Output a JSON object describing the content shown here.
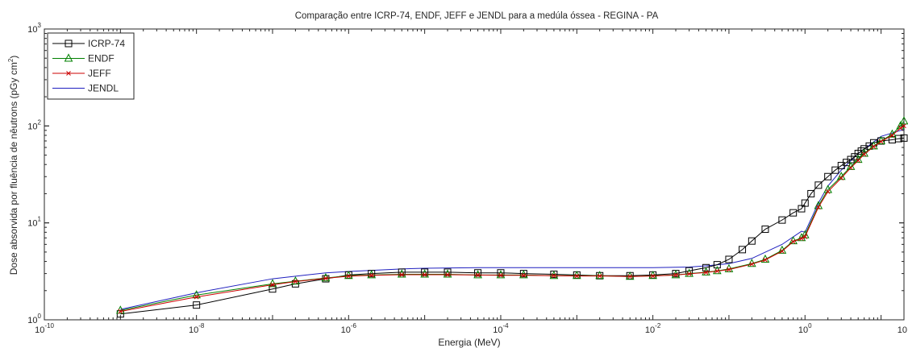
{
  "chart_data": {
    "type": "line",
    "title": "Comparação entre ICRP-74, ENDF, JEFF e JENDL para a medúla óssea - REGINA - PA",
    "xlabel": "Energia (MeV)",
    "ylabel_main": "Dose absorvida por fluência de nêutrons (pGy cm",
    "ylabel_exp": "2",
    "ylabel_close": ")",
    "x_scale": "log",
    "y_scale": "log",
    "xlim": [
      1e-10,
      20
    ],
    "ylim": [
      1,
      1000
    ],
    "grid": false,
    "legend_position": "top-left",
    "x_ticks": [
      {
        "base": "10",
        "exp": "-10",
        "value": 1e-10
      },
      {
        "base": "10",
        "exp": "-8",
        "value": 1e-08
      },
      {
        "base": "10",
        "exp": "-6",
        "value": 1e-06
      },
      {
        "base": "10",
        "exp": "-4",
        "value": 0.0001
      },
      {
        "base": "10",
        "exp": "-2",
        "value": 0.01
      },
      {
        "base": "10",
        "exp": "0",
        "value": 1
      },
      {
        "base": "10",
        "exp": "",
        "value": 20
      }
    ],
    "y_ticks": [
      {
        "base": "10",
        "exp": "0",
        "value": 1
      },
      {
        "base": "10",
        "exp": "1",
        "value": 10
      },
      {
        "base": "10",
        "exp": "2",
        "value": 100
      },
      {
        "base": "10",
        "exp": "3",
        "value": 1000
      }
    ],
    "series": [
      {
        "name": "ICRP-74",
        "color": "#000000",
        "marker": "square",
        "x": [
          1e-09,
          1e-08,
          1e-07,
          2e-07,
          5e-07,
          1e-06,
          2e-06,
          5e-06,
          1e-05,
          2e-05,
          5e-05,
          0.0001,
          0.0002,
          0.0005,
          0.001,
          0.002,
          0.005,
          0.01,
          0.02,
          0.03,
          0.05,
          0.07,
          0.1,
          0.15,
          0.2,
          0.3,
          0.5,
          0.7,
          0.9,
          1.0,
          1.2,
          1.5,
          2.0,
          2.5,
          3.0,
          3.5,
          4.0,
          4.5,
          5.0,
          5.5,
          6.0,
          7.0,
          8.0,
          10.0,
          14.0,
          17.0,
          20.0
        ],
        "y": [
          1.15,
          1.42,
          2.08,
          2.35,
          2.65,
          2.9,
          3.0,
          3.1,
          3.1,
          3.1,
          3.05,
          3.05,
          3.0,
          2.95,
          2.9,
          2.85,
          2.85,
          2.9,
          3.0,
          3.2,
          3.45,
          3.7,
          4.2,
          5.3,
          6.5,
          8.6,
          10.7,
          12.7,
          14.0,
          16.0,
          20.0,
          24.5,
          30.0,
          35.0,
          39.0,
          42.0,
          45.0,
          48.0,
          52.0,
          55.0,
          58.0,
          62.0,
          67.0,
          70.0,
          72.0,
          74.0,
          75.0
        ]
      },
      {
        "name": "ENDF",
        "color": "#008000",
        "marker": "triangle",
        "x": [
          1e-09,
          1e-08,
          1e-07,
          2e-07,
          5e-07,
          1e-06,
          2e-06,
          5e-06,
          1e-05,
          2e-05,
          5e-05,
          0.0001,
          0.0002,
          0.0005,
          0.001,
          0.002,
          0.005,
          0.01,
          0.02,
          0.03,
          0.05,
          0.07,
          0.1,
          0.2,
          0.3,
          0.5,
          0.7,
          0.9,
          1.0,
          1.5,
          2.0,
          3.0,
          4.0,
          5.0,
          6.0,
          8.0,
          10.0,
          14.0,
          18.0,
          20.0
        ],
        "y": [
          1.25,
          1.8,
          2.35,
          2.5,
          2.7,
          2.85,
          2.9,
          2.95,
          2.95,
          2.95,
          2.9,
          2.9,
          2.9,
          2.85,
          2.85,
          2.85,
          2.8,
          2.85,
          2.9,
          3.0,
          3.1,
          3.2,
          3.35,
          3.8,
          4.2,
          5.2,
          6.5,
          7.0,
          7.5,
          15.0,
          22.0,
          30.0,
          38.0,
          45.0,
          52.0,
          62.0,
          70.0,
          82.0,
          100.0,
          112.0
        ]
      },
      {
        "name": "JEFF",
        "color": "#cc0000",
        "marker": "x",
        "x": [
          1e-09,
          1e-08,
          1e-07,
          2e-07,
          5e-07,
          1e-06,
          2e-06,
          5e-06,
          1e-05,
          2e-05,
          5e-05,
          0.0001,
          0.0002,
          0.0005,
          0.001,
          0.002,
          0.005,
          0.01,
          0.02,
          0.03,
          0.05,
          0.07,
          0.1,
          0.2,
          0.3,
          0.5,
          0.7,
          0.9,
          1.0,
          1.5,
          2.0,
          3.0,
          4.0,
          5.0,
          6.0,
          8.0,
          10.0,
          14.0,
          18.0,
          20.0
        ],
        "y": [
          1.22,
          1.72,
          2.3,
          2.48,
          2.68,
          2.82,
          2.88,
          2.92,
          2.92,
          2.92,
          2.9,
          2.88,
          2.88,
          2.85,
          2.83,
          2.83,
          2.8,
          2.83,
          2.9,
          2.98,
          3.08,
          3.18,
          3.3,
          3.75,
          4.15,
          5.1,
          6.4,
          6.9,
          7.2,
          14.5,
          21.0,
          29.0,
          37.0,
          44.0,
          51.0,
          61.0,
          69.0,
          80.0,
          95.0,
          100.0
        ]
      },
      {
        "name": "JENDL",
        "color": "#1f1fbf",
        "marker": "none",
        "x": [
          1e-09,
          1e-08,
          1e-07,
          5e-07,
          1e-06,
          5e-06,
          1e-05,
          5e-05,
          0.0001,
          0.0005,
          0.001,
          0.005,
          0.01,
          0.03,
          0.05,
          0.1,
          0.2,
          0.5,
          0.9,
          1.0,
          1.5,
          2.0,
          3.0,
          5.0,
          10.0,
          20.0
        ],
        "y": [
          1.28,
          1.9,
          2.65,
          3.05,
          3.15,
          3.35,
          3.4,
          3.45,
          3.45,
          3.45,
          3.45,
          3.45,
          3.45,
          3.5,
          3.6,
          3.8,
          4.3,
          6.0,
          8.2,
          8.0,
          16.0,
          24.0,
          35.0,
          52.0,
          78.0,
          92.0
        ]
      }
    ]
  }
}
